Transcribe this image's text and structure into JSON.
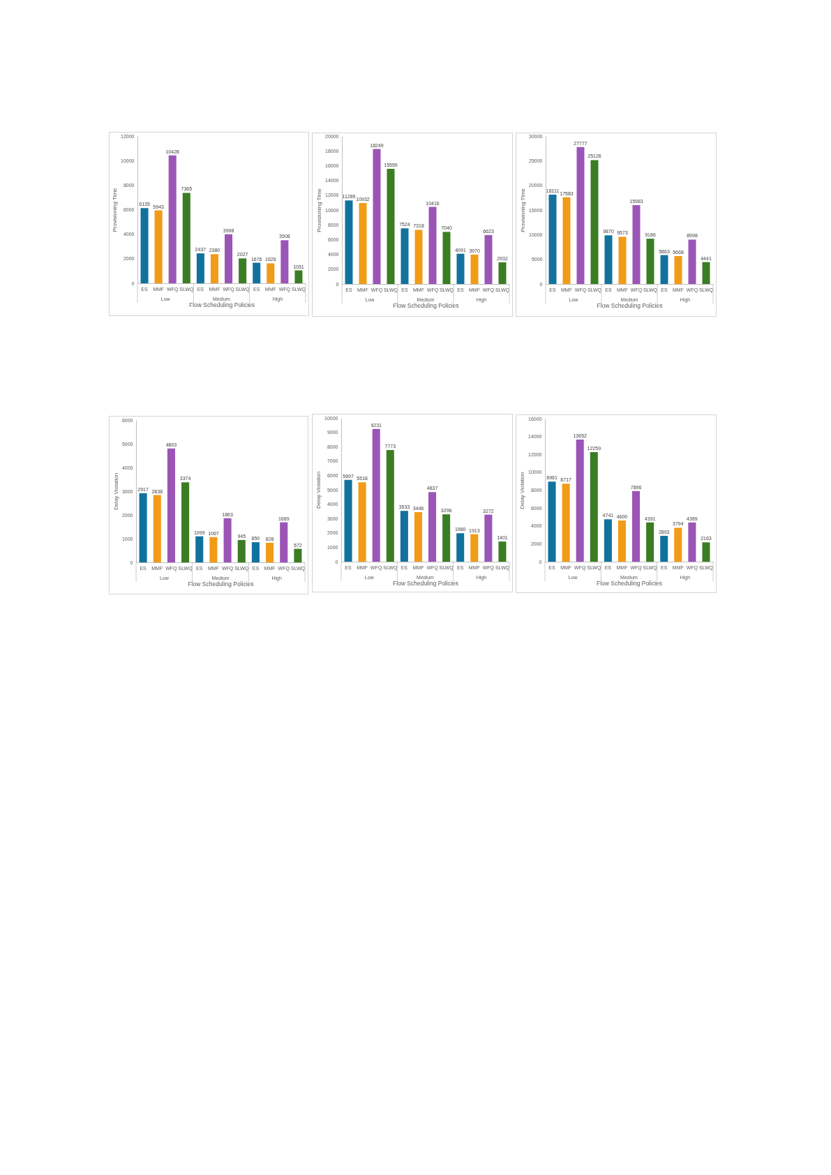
{
  "chart_data": [
    {
      "type": "bar",
      "ylabel": "Provisioning Time",
      "xlabel": "Flow Scheduling Policies",
      "categories": [
        "ES",
        "MMF",
        "WFQ",
        "SLWQ",
        "ES",
        "MMF",
        "WFQ",
        "SLWQ",
        "ES",
        "MMF",
        "WFQ",
        "SLWQ"
      ],
      "values": [
        6135,
        5943,
        10428,
        7365,
        2437,
        2380,
        3998,
        2027,
        1676,
        1626,
        3508,
        1051
      ],
      "colors": [
        "#12729e",
        "#f29b17",
        "#9b55b7",
        "#3b7d23",
        "#12729e",
        "#f29b17",
        "#9b55b7",
        "#3b7d23",
        "#12729e",
        "#f29b17",
        "#9b55b7",
        "#3b7d23"
      ],
      "annotations": [
        "Low",
        "Medium",
        "High"
      ],
      "ylim": [
        0,
        12000
      ],
      "yticks": [
        0,
        2000,
        4000,
        6000,
        8000,
        10000,
        12000
      ],
      "data_labels": true
    },
    {
      "type": "bar",
      "ylabel": "Provisioning Time",
      "xlabel": "Flow Scheduling Policies",
      "categories": [
        "ES",
        "MMF",
        "WFQ",
        "SLWQ",
        "ES",
        "MMF",
        "WFQ",
        "SLWQ",
        "ES",
        "MMF",
        "WFQ",
        "SLWQ"
      ],
      "values": [
        11289,
        10932,
        18249,
        15559,
        7524,
        7318,
        10416,
        7040,
        4091,
        3970,
        6623,
        2932
      ],
      "colors": [
        "#12729e",
        "#f29b17",
        "#9b55b7",
        "#3b7d23",
        "#12729e",
        "#f29b17",
        "#9b55b7",
        "#3b7d23",
        "#12729e",
        "#f29b17",
        "#9b55b7",
        "#3b7d23"
      ],
      "annotations": [
        "Low",
        "Medium",
        "High"
      ],
      "ylim": [
        0,
        20000
      ],
      "yticks": [
        0,
        2000,
        4000,
        6000,
        8000,
        10000,
        12000,
        14000,
        16000,
        18000,
        20000
      ],
      "data_labels": true
    },
    {
      "type": "bar",
      "ylabel": "Provisioning Time",
      "xlabel": "Flow Scheduling Policies",
      "categories": [
        "ES",
        "MMF",
        "WFQ",
        "SLWQ",
        "ES",
        "MMF",
        "WFQ",
        "SLWQ",
        "ES",
        "MMF",
        "WFQ",
        "SLWQ"
      ],
      "values": [
        18111,
        17583,
        27777,
        25126,
        9870,
        9573,
        15983,
        9186,
        5863,
        5668,
        8998,
        4441
      ],
      "colors": [
        "#12729e",
        "#f29b17",
        "#9b55b7",
        "#3b7d23",
        "#12729e",
        "#f29b17",
        "#9b55b7",
        "#3b7d23",
        "#12729e",
        "#f29b17",
        "#9b55b7",
        "#3b7d23"
      ],
      "annotations": [
        "Low",
        "Medium",
        "High"
      ],
      "ylim": [
        0,
        30000
      ],
      "yticks": [
        0,
        5000,
        10000,
        15000,
        20000,
        25000,
        30000
      ],
      "data_labels": true
    },
    {
      "type": "bar",
      "ylabel": "Delay Violation",
      "xlabel": "Flow Scheduling Policies",
      "categories": [
        "ES",
        "MMF",
        "WFQ",
        "SLWQ",
        "ES",
        "MMF",
        "WFQ",
        "SLWQ",
        "ES",
        "MMF",
        "WFQ",
        "SLWQ"
      ],
      "values": [
        2917,
        2838,
        4803,
        3374,
        1099,
        1067,
        1863,
        945,
        850,
        828,
        1689,
        572
      ],
      "colors": [
        "#12729e",
        "#f29b17",
        "#9b55b7",
        "#3b7d23",
        "#12729e",
        "#f29b17",
        "#9b55b7",
        "#3b7d23",
        "#12729e",
        "#f29b17",
        "#9b55b7",
        "#3b7d23"
      ],
      "annotations": [
        "Low",
        "Medium",
        "High"
      ],
      "ylim": [
        0,
        6000
      ],
      "yticks": [
        0,
        1000,
        2000,
        3000,
        4000,
        5000,
        6000
      ],
      "data_labels": true
    },
    {
      "type": "bar",
      "ylabel": "Delay Violation",
      "xlabel": "Flow Scheduling Policies",
      "categories": [
        "ES",
        "MMF",
        "WFQ",
        "SLWQ",
        "ES",
        "MMF",
        "WFQ",
        "SLWQ",
        "ES",
        "MMF",
        "WFQ",
        "SLWQ"
      ],
      "values": [
        5697,
        5518,
        9231,
        7773,
        3533,
        3446,
        4837,
        3296,
        1980,
        1913,
        3272,
        1401
      ],
      "colors": [
        "#12729e",
        "#f29b17",
        "#9b55b7",
        "#3b7d23",
        "#12729e",
        "#f29b17",
        "#9b55b7",
        "#3b7d23",
        "#12729e",
        "#f29b17",
        "#9b55b7",
        "#3b7d23"
      ],
      "annotations": [
        "Low",
        "Medium",
        "High"
      ],
      "ylim": [
        0,
        10000
      ],
      "yticks": [
        0,
        1000,
        2000,
        3000,
        4000,
        5000,
        6000,
        7000,
        8000,
        9000,
        10000
      ],
      "data_labels": true
    },
    {
      "type": "bar",
      "ylabel": "Delay Violation",
      "xlabel": "Flow Scheduling Policies",
      "categories": [
        "ES",
        "MMF",
        "WFQ",
        "SLWQ",
        "ES",
        "MMF",
        "WFQ",
        "SLWQ",
        "ES",
        "MMF",
        "WFQ",
        "SLWQ"
      ],
      "values": [
        8961,
        8717,
        13652,
        12259,
        4741,
        4600,
        7896,
        4391,
        2893,
        3794,
        4389,
        2163
      ],
      "colors": [
        "#12729e",
        "#f29b17",
        "#9b55b7",
        "#3b7d23",
        "#12729e",
        "#f29b17",
        "#9b55b7",
        "#3b7d23",
        "#12729e",
        "#f29b17",
        "#9b55b7",
        "#3b7d23"
      ],
      "annotations": [
        "Low",
        "Medium",
        "High"
      ],
      "ylim": [
        0,
        16000
      ],
      "yticks": [
        0,
        2000,
        4000,
        6000,
        8000,
        10000,
        12000,
        14000,
        16000
      ],
      "data_labels": true
    }
  ]
}
